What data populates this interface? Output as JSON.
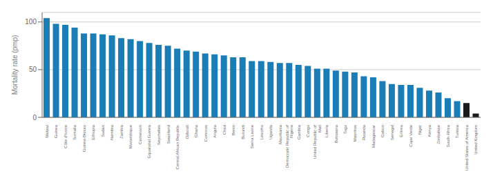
{
  "chart_data": {
    "type": "bar",
    "ylabel": "Mortality rate (pmp)",
    "categories": [
      "Malawi",
      "Guinea",
      "Côte d’Ivoire",
      "Somalia",
      "Guinea-Bissau",
      "Ethiopia",
      "Sudan",
      "Namibia",
      "Zambia",
      "Mozambique",
      "Cameroon",
      "Equatorial Guinea",
      "Seychelles",
      "Swaziland",
      "Central African Republic",
      "Djibouti",
      "Ghana",
      "Comoros",
      "Angola",
      "Chad",
      "Benin",
      "Burundi",
      "Sierra Leone",
      "Lesotho",
      "Uganda",
      "Mauritania",
      "Democratic Republic of\nNigeria",
      "Gambia",
      "Congo",
      "United Republic of\nMali",
      "Liberia",
      "Botswana",
      "Togo",
      "Mauritius",
      "Rwanda",
      "Madagascar",
      "Gabon",
      "Senegal",
      "Eritrea",
      "Cape Verde",
      "Niger",
      "Kenya",
      "Zimbabwe",
      "South Africa",
      "Tunisia",
      "United States of America",
      "United Kingdom"
    ],
    "values": [
      104,
      98,
      97,
      94,
      88,
      88,
      87,
      86,
      83,
      82,
      80,
      78,
      76,
      75,
      72,
      70,
      69,
      67,
      66,
      65,
      63,
      63,
      59,
      59,
      58,
      57,
      57,
      55,
      54,
      51,
      51,
      49,
      48,
      47,
      43,
      42,
      38,
      35,
      34,
      34,
      31,
      28,
      26,
      20,
      17,
      15,
      4
    ],
    "colors": [
      "#1a7db5",
      "#1a7db5",
      "#1a7db5",
      "#1a7db5",
      "#1a7db5",
      "#1a7db5",
      "#1a7db5",
      "#1a7db5",
      "#1a7db5",
      "#1a7db5",
      "#1a7db5",
      "#1a7db5",
      "#1a7db5",
      "#1a7db5",
      "#1a7db5",
      "#1a7db5",
      "#1a7db5",
      "#1a7db5",
      "#1a7db5",
      "#1a7db5",
      "#1a7db5",
      "#1a7db5",
      "#1a7db5",
      "#1a7db5",
      "#1a7db5",
      "#1a7db5",
      "#1a7db5",
      "#1a7db5",
      "#1a7db5",
      "#1a7db5",
      "#1a7db5",
      "#1a7db5",
      "#1a7db5",
      "#1a7db5",
      "#1a7db5",
      "#1a7db5",
      "#1a7db5",
      "#1a7db5",
      "#1a7db5",
      "#1a7db5",
      "#1a7db5",
      "#1a7db5",
      "#1a7db5",
      "#1a7db5",
      "#1a7db5",
      "#1a1a1a",
      "#1a1a1a"
    ],
    "ylim": [
      0,
      110
    ],
    "yticks": [
      0,
      50,
      100
    ],
    "grid": true
  }
}
